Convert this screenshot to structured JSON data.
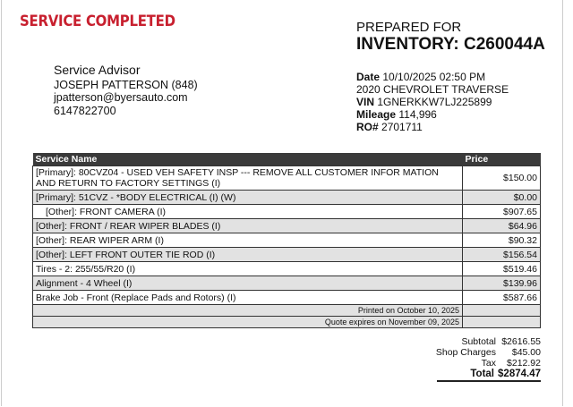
{
  "status": "SERVICE COMPLETED",
  "prepared_for": {
    "label": "PREPARED FOR",
    "inventory": "INVENTORY: C260044A"
  },
  "advisor": {
    "heading": "Service Advisor",
    "name": "JOSEPH PATTERSON (848)",
    "email": "jpatterson@byersauto.com",
    "phone": "6147822700"
  },
  "vehicle": {
    "date_label": "Date",
    "date": "10/10/2025 02:50 PM",
    "model": "2020 CHEVROLET TRAVERSE",
    "vin_label": "VIN",
    "vin": "1GNERKKW7LJ225899",
    "mileage_label": "Mileage",
    "mileage": "114,996",
    "ro_label": "RO#",
    "ro": "2701711"
  },
  "table": {
    "headers": [
      "Service Name",
      "Price"
    ],
    "rows": [
      {
        "name": "[Primary]: 80CVZ04 - USED VEH SAFETY INSP --- REMOVE ALL CUSTOMER INFOR MATION AND RETURN TO FACTORY SETTINGS (I)",
        "price": "$150.00"
      },
      {
        "name": "[Primary]: 51CVZ - *BODY ELECTRICAL (I) (W)",
        "price": "$0.00"
      },
      {
        "name": "[Other]: FRONT CAMERA (I)",
        "price": "$907.65"
      },
      {
        "name": "[Other]: FRONT / REAR WIPER BLADES (I)",
        "price": "$64.96"
      },
      {
        "name": "[Other]: REAR WIPER ARM (I)",
        "price": "$90.32"
      },
      {
        "name": "[Other]: LEFT FRONT OUTER TIE ROD (I)",
        "price": "$156.54"
      },
      {
        "name": "Tires - 2: 255/55/R20 (I)",
        "price": "$519.46"
      },
      {
        "name": "Alignment - 4 Wheel (I)",
        "price": "$139.96"
      },
      {
        "name": "Brake Job - Front (Replace Pads and Rotors) (I)",
        "price": "$587.66"
      }
    ],
    "printed": "Printed on October 10, 2025",
    "expires": "Quote expires on November 09, 2025"
  },
  "totals": {
    "subtotal_label": "Subtotal",
    "subtotal": "$2616.55",
    "shop_label": "Shop Charges",
    "shop": "$45.00",
    "tax_label": "Tax",
    "tax": "$212.92",
    "total_label": "Total",
    "total": "$2874.47"
  },
  "colors": {
    "status": "#c8202f",
    "header_bg": "#3a3a3a",
    "row_alt": "#e2e2e2"
  }
}
